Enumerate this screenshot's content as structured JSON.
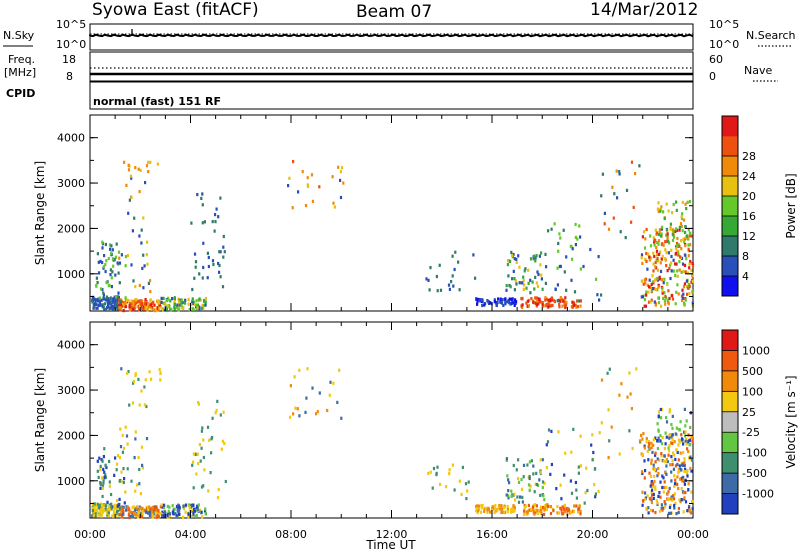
{
  "header": {
    "title": "Syowa East (fitACF)",
    "beam": "Beam 07",
    "date": "14/Mar/2012"
  },
  "summary_panels": {
    "nsky_label": "N.Sky",
    "nsky_top_tick": "10^5",
    "nsky_bottom_tick": "10^0",
    "nsearch_label": "N.Search",
    "freq_label_1": "Freq.",
    "freq_label_2": "[MHz]",
    "freq_top_tick": "18",
    "freq_bottom_tick": "8",
    "nave_top_tick": "60",
    "nave_bottom_tick": "0",
    "nave_label": "Nave",
    "cpid_label": "CPID",
    "cpid_value": "normal (fast) 151 RF"
  },
  "chart_data": [
    {
      "type": "heatmap",
      "name": "power",
      "ylabel": "Slant Range [km]",
      "yticks": [
        "1000",
        "2000",
        "3000",
        "4000"
      ],
      "ylim": [
        180,
        4500
      ],
      "colorbar": {
        "label": "Power [dB]",
        "ticks": [
          "4",
          "8",
          "12",
          "16",
          "20",
          "24",
          "28"
        ],
        "colors": [
          "#1010ee",
          "#2850b8",
          "#2f7a6a",
          "#36a836",
          "#64c82a",
          "#e8c010",
          "#f08a0a",
          "#ee5010",
          "#e01818"
        ]
      }
    },
    {
      "type": "heatmap",
      "name": "velocity",
      "ylabel": "Slant Range [km]",
      "yticks": [
        "1000",
        "2000",
        "3000",
        "4000"
      ],
      "ylim": [
        180,
        4500
      ],
      "colorbar": {
        "label": "Velocity [m s⁻¹]",
        "ticks": [
          "1000",
          "500",
          "100",
          "25",
          "-25",
          "-100",
          "-500",
          "-1000"
        ],
        "colors": [
          "#2040c0",
          "#3f6aa8",
          "#3e8e70",
          "#62c642",
          "#bdbdbd",
          "#f2c810",
          "#f08a0a",
          "#f05a10",
          "#e01818"
        ]
      }
    }
  ],
  "xaxis": {
    "label": "Time UT",
    "ticks": [
      "00:00",
      "04:00",
      "08:00",
      "12:00",
      "16:00",
      "20:00",
      "00:00"
    ]
  }
}
